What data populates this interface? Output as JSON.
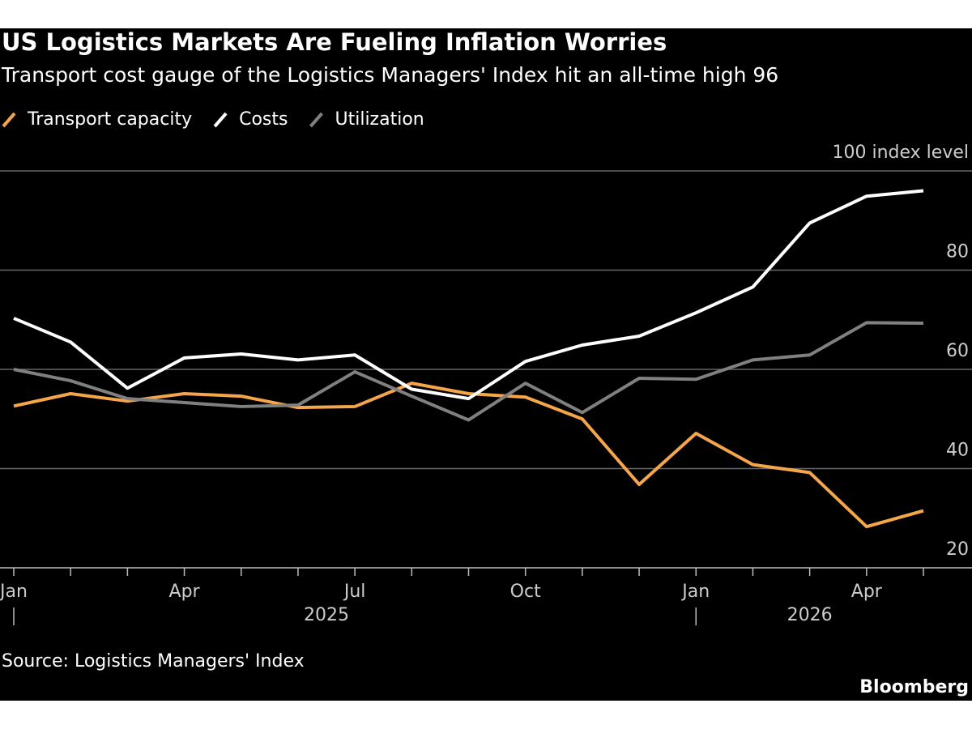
{
  "chart_data": {
    "type": "line",
    "title": "US Logistics Markets Are Fueling Inflation Worries",
    "subtitle": "Transport cost gauge of the Logistics Managers' Index hit an all-time high 96",
    "source": "Source: Logistics Managers' Index",
    "brand": "Bloomberg",
    "categories": [
      "Jan",
      null,
      null,
      "Apr",
      null,
      null,
      "Jul",
      null,
      null,
      "Oct",
      null,
      null,
      "Jan",
      null,
      null,
      "Apr",
      null
    ],
    "x_groups": [
      "2025",
      "2026"
    ],
    "series": [
      {
        "name": "Transport capacity",
        "color": "#f5a54a",
        "values": [
          52.6,
          55.1,
          53.6,
          55.1,
          54.6,
          52.3,
          52.5,
          57.2,
          55.1,
          54.4,
          50.0,
          36.8,
          47.1,
          40.8,
          39.2,
          28.3,
          31.5
        ]
      },
      {
        "name": "Costs",
        "color": "#ffffff",
        "values": [
          70.3,
          65.5,
          56.2,
          62.3,
          63.1,
          61.9,
          62.9,
          56.0,
          54.1,
          61.6,
          64.9,
          66.7,
          71.4,
          76.6,
          89.5,
          94.9,
          96
        ]
      },
      {
        "name": "Utilization",
        "color": "#808080",
        "values": [
          60.0,
          57.7,
          54.1,
          53.3,
          52.5,
          52.8,
          59.5,
          54.6,
          49.8,
          57.2,
          51.3,
          58.2,
          58.0,
          61.9,
          62.9,
          69.4,
          69.3
        ]
      }
    ],
    "ylim": [
      20,
      100
    ],
    "yticks": [
      20,
      40,
      60,
      80,
      {
        "value": 100,
        "label": "100 index level"
      }
    ],
    "grid": true
  }
}
